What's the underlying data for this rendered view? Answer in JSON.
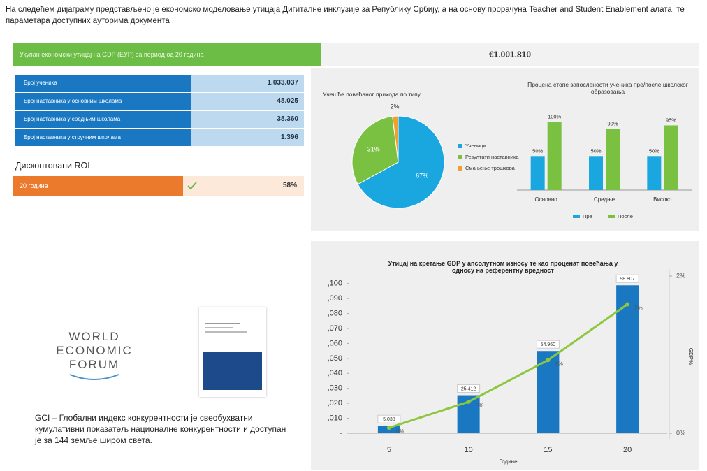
{
  "header": {
    "text": "На следећем дијаграму представљено је економско моделовање утицаја Дигиталне инклузије за Републику Србију, а на основу прорачуна Teacher and Student Enablement алата, те параметара доступних ауторима документа"
  },
  "summary": {
    "label": "Укупан економски утицај на GDP (ЕУР) за период од 20 година",
    "value": "€1.001.810"
  },
  "inputs": {
    "rows": [
      [
        "Број ученика",
        "1.033.037"
      ],
      [
        "Број наставника у основним школама",
        "48.025"
      ],
      [
        "Број наставника у средњим школама",
        "38.360"
      ],
      [
        "Број наставника у стручним школама",
        "1.396"
      ]
    ]
  },
  "roi": {
    "title": "Дисконтовани ROI",
    "label": "20 година",
    "value": "58%"
  },
  "logo": {
    "lines": [
      "WORLD",
      "ECONOMIC",
      "FORUM"
    ]
  },
  "note": {
    "text": "GCI – Глобални индекс конкурентности је свеобухватни кумулативни показатељ националне конкурентности и доступан је за 144 земље широм света."
  },
  "chart_data": [
    {
      "type": "pie",
      "title": "Учешће повећаног прихода по типу",
      "categories": [
        "Ученици",
        "Резултати наставника",
        "Смањење трошкова"
      ],
      "values": [
        67,
        31,
        2
      ],
      "value_labels": [
        "67%",
        "31%",
        "2%"
      ],
      "colors": [
        "#1aa7e0",
        "#7ac142",
        "#f0a030"
      ]
    },
    {
      "type": "bar",
      "title": "Процена стопе запослености ученика пре/после школског образовања",
      "categories": [
        "Основно",
        "Средње",
        "Високо"
      ],
      "series": [
        {
          "name": "Пре",
          "color": "#1aa7e0",
          "values": [
            50,
            50,
            50
          ],
          "value_labels": [
            "50%",
            "50%",
            "50%"
          ]
        },
        {
          "name": "После",
          "color": "#7ac142",
          "values": [
            100,
            90,
            95
          ],
          "value_labels": [
            "100%",
            "90%",
            "95%"
          ]
        }
      ],
      "ylim": [
        0,
        115
      ]
    },
    {
      "type": "combo",
      "title": "Утицај на кретање GDP у апсолутном износу те као проценат повећања у односу на референтну вредност",
      "x_label": "Године",
      "y2_label": "GDP%",
      "categories": [
        "5",
        "10",
        "15",
        "20"
      ],
      "series": [
        {
          "kind": "bar",
          "color": "#1a78c2",
          "values": [
            5.038,
            25.412,
            54.96,
            98.807
          ],
          "value_labels": [
            "5.038",
            "25.412",
            "54.960",
            "98.807"
          ]
        },
        {
          "kind": "line",
          "axis": "y2",
          "color": "#8dc63f",
          "values": [
            0.07,
            0.4,
            0.93,
            1.64
          ],
          "value_labels": [
            "0%",
            "0%",
            "1%",
            "2%"
          ]
        }
      ],
      "ylim": [
        0,
        105
      ],
      "yticks": [
        {
          "value": 0,
          "label": "-"
        },
        {
          "value": 10,
          "label": ",010"
        },
        {
          "value": 20,
          "label": ",020"
        },
        {
          "value": 30,
          "label": ",030"
        },
        {
          "value": 40,
          "label": ",040"
        },
        {
          "value": 50,
          "label": ",050"
        },
        {
          "value": 60,
          "label": ",060"
        },
        {
          "value": 70,
          "label": ",070"
        },
        {
          "value": 80,
          "label": ",080"
        },
        {
          "value": 90,
          "label": ",090"
        },
        {
          "value": 100,
          "label": ",100"
        }
      ],
      "y2lim": [
        0,
        2
      ],
      "y2ticks": [
        {
          "value": 0,
          "label": "0%"
        },
        {
          "value": 2,
          "label": "2%"
        }
      ]
    }
  ]
}
